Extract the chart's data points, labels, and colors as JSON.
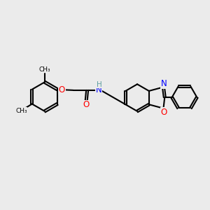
{
  "background_color": "#ebebeb",
  "bond_color": "#000000",
  "oxygen_color": "#ff0000",
  "nitrogen_color": "#0000ff",
  "nh_color": "#5f9ea0",
  "figsize": [
    3.0,
    3.0
  ],
  "dpi": 100,
  "xlim": [
    0,
    10
  ],
  "ylim": [
    0,
    10
  ]
}
